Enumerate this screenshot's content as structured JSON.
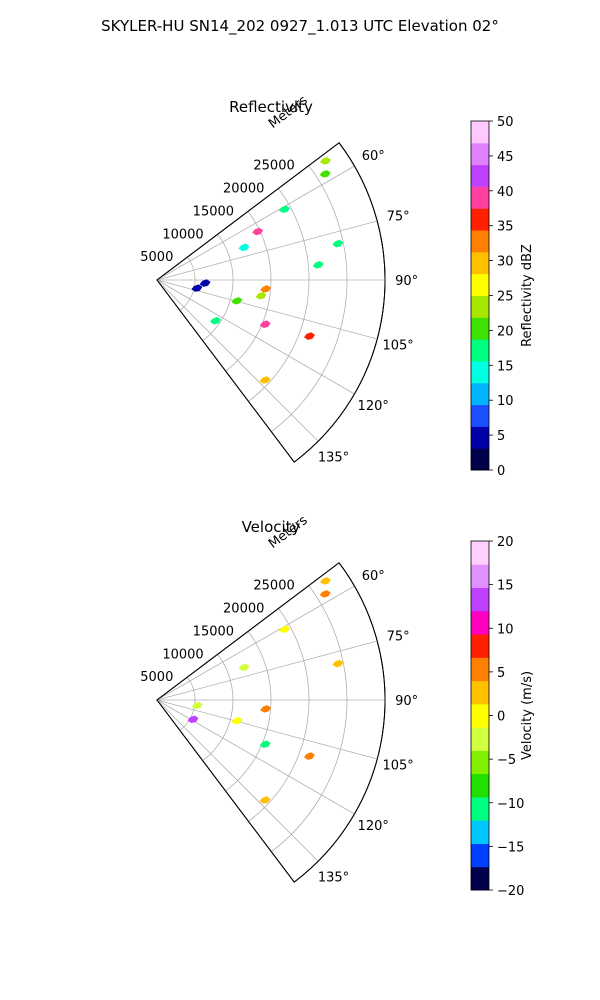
{
  "figure": {
    "title": "SKYLER-HU  SN14_202  0927_1.013 UTC Elevation 02°"
  },
  "chart_data": [
    {
      "type": "polar-sector",
      "title": "Reflectivity",
      "radial_label": "Meters",
      "radial_ticks": [
        "5000",
        "10000",
        "15000",
        "20000",
        "25000"
      ],
      "radial_values": [
        5000,
        10000,
        15000,
        20000,
        25000
      ],
      "rlim": [
        0,
        30000
      ],
      "azimuth_ticks": [
        "60°",
        "75°",
        "90°",
        "105°",
        "120°",
        "135°"
      ],
      "azimuth_values": [
        60,
        75,
        90,
        105,
        120,
        135
      ],
      "azimuth_range": [
        53,
        143
      ],
      "grid": true,
      "colorbar": {
        "label": "Reflectivity dBZ",
        "min": 0,
        "max": 50,
        "ticks": [
          "0",
          "5",
          "10",
          "15",
          "20",
          "25",
          "30",
          "35",
          "40",
          "45",
          "50"
        ],
        "colors": [
          "#00004c",
          "#0000a8",
          "#1e50ff",
          "#00b4ff",
          "#00ffe0",
          "#00ff80",
          "#40e000",
          "#a8e800",
          "#ffff00",
          "#ffc000",
          "#ff8000",
          "#ff2000",
          "#ff40a0",
          "#c040ff",
          "#e080ff",
          "#ffc8ff"
        ]
      },
      "echoes": [
        {
          "az": 54,
          "r": 27000,
          "value": 24
        },
        {
          "az": 57,
          "r": 26000,
          "value": 20
        },
        {
          "az": 60,
          "r": 19000,
          "value": 18
        },
        {
          "az": 63,
          "r": 14500,
          "value": 38
        },
        {
          "az": 68,
          "r": 12000,
          "value": 14
        },
        {
          "az": 78,
          "r": 24000,
          "value": 18
        },
        {
          "az": 84,
          "r": 21000,
          "value": 17
        },
        {
          "az": 94,
          "r": 14000,
          "value": 34
        },
        {
          "az": 98,
          "r": 13500,
          "value": 22
        },
        {
          "az": 104,
          "r": 10500,
          "value": 20
        },
        {
          "az": 110,
          "r": 21000,
          "value": 36
        },
        {
          "az": 112,
          "r": 15000,
          "value": 38
        },
        {
          "az": 125,
          "r": 9000,
          "value": 18
        },
        {
          "az": 133,
          "r": 19000,
          "value": 29
        },
        {
          "az": 100,
          "r": 5000,
          "value": 6
        },
        {
          "az": 92,
          "r": 6000,
          "value": 4
        }
      ]
    },
    {
      "type": "polar-sector",
      "title": "Velocity",
      "radial_label": "Meters",
      "radial_ticks": [
        "5000",
        "10000",
        "15000",
        "20000",
        "25000"
      ],
      "radial_values": [
        5000,
        10000,
        15000,
        20000,
        25000
      ],
      "rlim": [
        0,
        30000
      ],
      "azimuth_ticks": [
        "60°",
        "75°",
        "90°",
        "105°",
        "120°",
        "135°"
      ],
      "azimuth_values": [
        60,
        75,
        90,
        105,
        120,
        135
      ],
      "azimuth_range": [
        53,
        143
      ],
      "grid": true,
      "colorbar": {
        "label": "Velocity (m/s)",
        "min": -20,
        "max": 20,
        "ticks": [
          "−20",
          "−15",
          "−10",
          "−5",
          "0",
          "5",
          "10",
          "15",
          "20"
        ],
        "colors": [
          "#00004c",
          "#0040ff",
          "#00c8ff",
          "#00ff80",
          "#20e000",
          "#80f000",
          "#d0ff40",
          "#ffff00",
          "#ffc000",
          "#ff8000",
          "#ff2000",
          "#ff00c0",
          "#c040ff",
          "#e090ff",
          "#ffd0ff"
        ]
      },
      "echoes": [
        {
          "az": 54,
          "r": 27000,
          "value": 3
        },
        {
          "az": 57,
          "r": 26000,
          "value": 4
        },
        {
          "az": 60,
          "r": 19000,
          "value": 1
        },
        {
          "az": 68,
          "r": 12000,
          "value": -3
        },
        {
          "az": 78,
          "r": 24000,
          "value": 2
        },
        {
          "az": 94,
          "r": 14000,
          "value": 4
        },
        {
          "az": 104,
          "r": 10500,
          "value": -1
        },
        {
          "az": 110,
          "r": 21000,
          "value": 5
        },
        {
          "az": 112,
          "r": 15000,
          "value": -12
        },
        {
          "az": 118,
          "r": 5000,
          "value": 14
        },
        {
          "az": 133,
          "r": 19000,
          "value": 2
        },
        {
          "az": 96,
          "r": 5000,
          "value": -2
        }
      ]
    }
  ]
}
